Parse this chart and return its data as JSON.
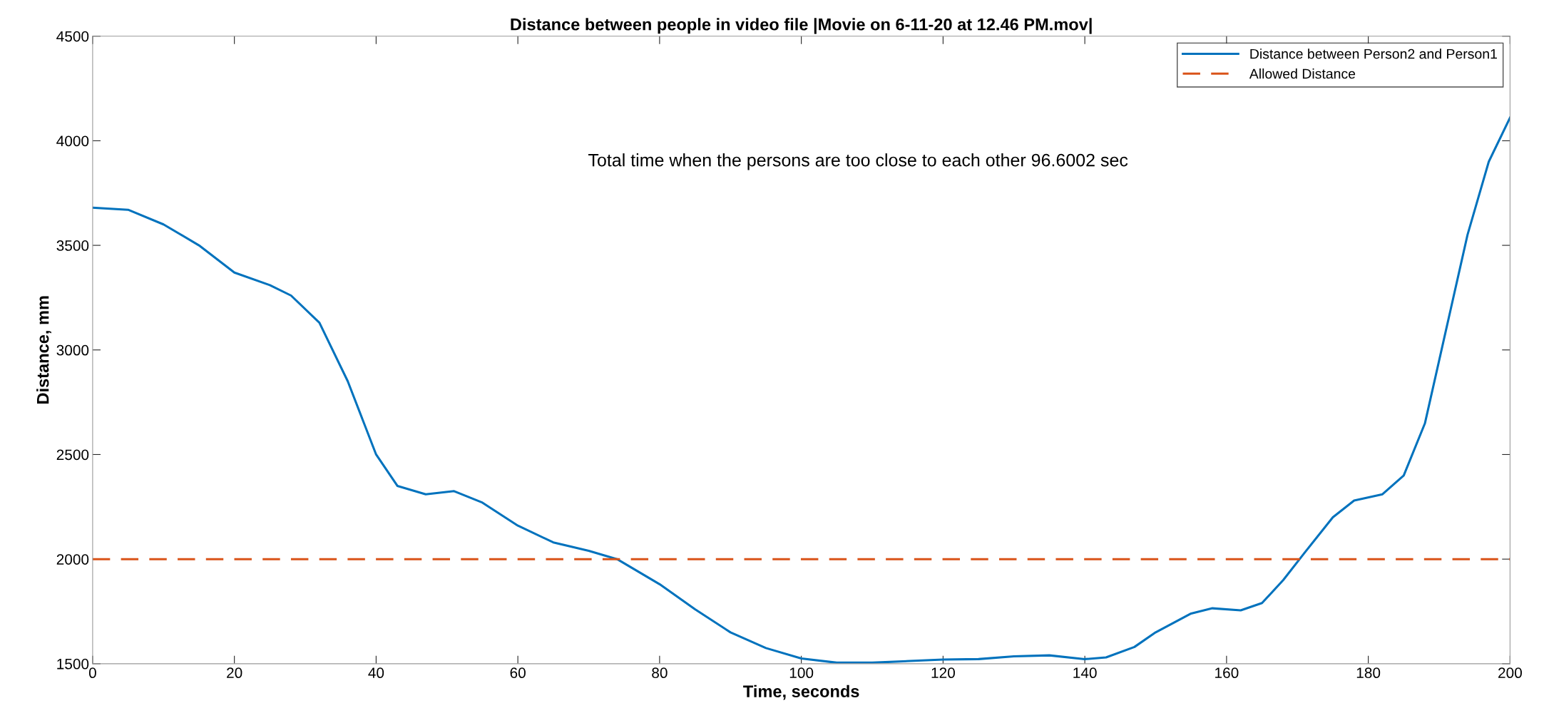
{
  "chart_data": {
    "type": "line",
    "title": "Distance between people in video file |Movie on 6-11-20 at 12.46 PM.mov|",
    "xlabel": "Time, seconds",
    "ylabel": "Distance, mm",
    "x": [
      0,
      5,
      10,
      15,
      20,
      25,
      28,
      32,
      36,
      40,
      43,
      47,
      51,
      55,
      60,
      65,
      70,
      74,
      80,
      85,
      90,
      95,
      100,
      105,
      110,
      120,
      125,
      130,
      135,
      140,
      143,
      147,
      150,
      155,
      158,
      162,
      165,
      168,
      171,
      175,
      178,
      182,
      185,
      188,
      191,
      194,
      197,
      200
    ],
    "series": [
      {
        "name": "Distance between Person2 and Person1",
        "color": "#0072bd",
        "values": [
          3680,
          3670,
          3600,
          3500,
          3370,
          3310,
          3260,
          3130,
          2850,
          2500,
          2350,
          2310,
          2325,
          2270,
          2160,
          2080,
          2040,
          2000,
          1880,
          1760,
          1650,
          1575,
          1525,
          1505,
          1505,
          1520,
          1522,
          1535,
          1540,
          1522,
          1530,
          1580,
          1650,
          1740,
          1765,
          1755,
          1790,
          1900,
          2030,
          2200,
          2280,
          2310,
          2400,
          2650,
          3100,
          3550,
          3900,
          4110
        ]
      }
    ],
    "ref_lines": [
      {
        "axis": "y",
        "value": 2000,
        "label": "Allowed Distance",
        "color": "#d95319",
        "line_style": "dashed"
      }
    ],
    "annotations": [
      "Total time when the persons are too close to each other 96.6002 sec"
    ],
    "xlim": [
      0,
      200
    ],
    "xticks": [
      0,
      20,
      40,
      60,
      80,
      100,
      120,
      140,
      160,
      180,
      200
    ],
    "ylim": [
      1500,
      4500
    ],
    "yticks": [
      1500,
      2000,
      2500,
      3000,
      3500,
      4000,
      4500
    ],
    "grid": false,
    "legend": "top right",
    "marker": "none",
    "line_style": "solid"
  }
}
